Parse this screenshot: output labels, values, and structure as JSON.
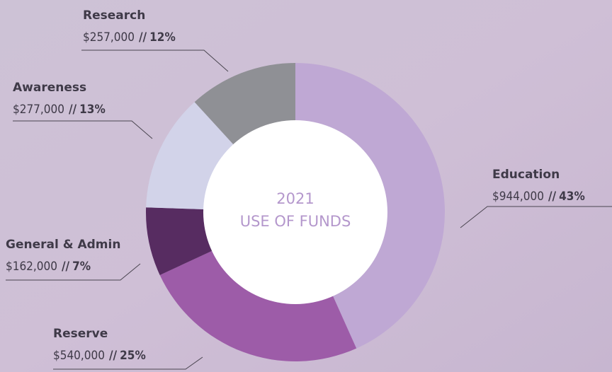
{
  "chart_data": {
    "type": "donut",
    "center_label": {
      "year": "2021",
      "text": "USE OF FUNDS"
    },
    "categories": [
      "Education",
      "Reserve",
      "General & Admin",
      "Awareness",
      "Research"
    ],
    "values": [
      944000,
      540000,
      162000,
      277000,
      257000
    ],
    "value_labels": [
      "$944,000",
      "$540,000",
      "$162,000",
      "$277,000",
      "$257,000"
    ],
    "separator": "//",
    "percentages": [
      43,
      25,
      7,
      13,
      12
    ],
    "percentage_labels": [
      "43%",
      "25%",
      "7%",
      "13%",
      "12%"
    ],
    "colors": [
      "#bfa8d4",
      "#9d5ca8",
      "#572c61",
      "#d2d3e9",
      "#8f9095"
    ]
  }
}
